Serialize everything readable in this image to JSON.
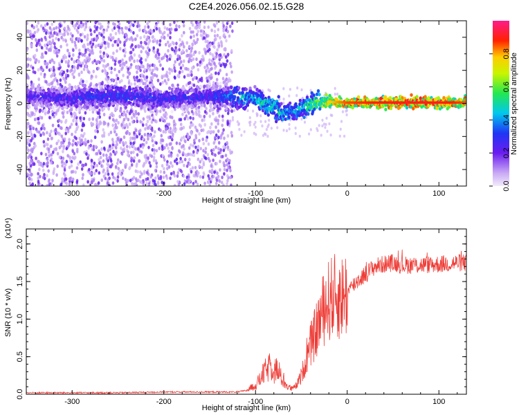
{
  "title": "C2E4.2026.056.02.15.G28",
  "colors": {
    "snr_line": "#ee3b35",
    "scatter_main": "#6a1cf0",
    "scatter_faint": "#c9a8f5",
    "axis": "#000000"
  },
  "chart_data": [
    {
      "type": "heatmap",
      "name": "spectrogram",
      "title": "C2E4.2026.056.02.15.G28",
      "xlabel": "Height of straight line (km)",
      "ylabel": "Frequency (Hz)",
      "xlim": [
        -350,
        130
      ],
      "ylim": [
        -50,
        50
      ],
      "x_ticks": [
        -300,
        -200,
        -100,
        0,
        100
      ],
      "y_ticks": [
        -40,
        -20,
        0,
        20,
        40
      ],
      "colorbar": {
        "label": "Normalized spectral amplitude",
        "range": [
          0,
          1
        ],
        "ticks": [
          "0.0",
          "0.2",
          "0.4",
          "0.6",
          "0.8"
        ],
        "colormap": "rainbow (lavender/purple → blue → cyan → green → yellow → red → magenta)"
      },
      "ridge": {
        "description": "Dominant frequency trace: noisy scattered band for x < -130, dips to about -7 Hz near x = -70, then a strong stable line near 0 Hz from x = -20 to 130",
        "x": [
          -350,
          -300,
          -250,
          -200,
          -150,
          -120,
          -100,
          -90,
          -80,
          -70,
          -60,
          -50,
          -40,
          -30,
          -20,
          0,
          50,
          100,
          130
        ],
        "freq_hz": [
          4,
          3,
          5,
          3,
          4,
          4,
          3,
          0,
          -3,
          -6,
          -5,
          -3,
          -1,
          1,
          1,
          0.5,
          0.5,
          0.5,
          0.5
        ],
        "amplitude": [
          0.3,
          0.35,
          0.4,
          0.35,
          0.35,
          0.5,
          0.55,
          0.6,
          0.6,
          0.55,
          0.5,
          0.55,
          0.65,
          0.75,
          0.85,
          0.95,
          1.0,
          1.0,
          0.95
        ]
      },
      "noise_cutoff_x": -130
    },
    {
      "type": "line",
      "name": "snr",
      "xlabel": "Height of straight line (km)",
      "ylabel": "SNR (10 * v/v)",
      "y_multiplier": "(x10⁴)",
      "xlim": [
        -350,
        130
      ],
      "ylim": [
        0,
        2.2
      ],
      "x_ticks": [
        -300,
        -200,
        -100,
        0,
        100
      ],
      "y_ticks": [
        "0.0",
        "0.5",
        "1.0",
        "1.5",
        "2.0"
      ],
      "series": [
        {
          "name": "SNR",
          "x": [
            -350,
            -300,
            -250,
            -200,
            -150,
            -120,
            -110,
            -100,
            -95,
            -90,
            -85,
            -80,
            -75,
            -70,
            -65,
            -60,
            -55,
            -50,
            -45,
            -40,
            -35,
            -30,
            -25,
            -20,
            -15,
            -10,
            -5,
            0,
            10,
            20,
            30,
            40,
            50,
            60,
            80,
            100,
            120,
            130
          ],
          "values": [
            0.02,
            0.02,
            0.02,
            0.03,
            0.03,
            0.03,
            0.05,
            0.12,
            0.2,
            0.3,
            0.35,
            0.4,
            0.28,
            0.18,
            0.1,
            0.07,
            0.12,
            0.25,
            0.45,
            0.65,
            0.8,
            1.0,
            1.15,
            1.25,
            1.3,
            1.28,
            1.3,
            1.35,
            1.5,
            1.6,
            1.7,
            1.73,
            1.75,
            1.72,
            1.72,
            1.73,
            1.75,
            1.75
          ]
        }
      ]
    }
  ]
}
